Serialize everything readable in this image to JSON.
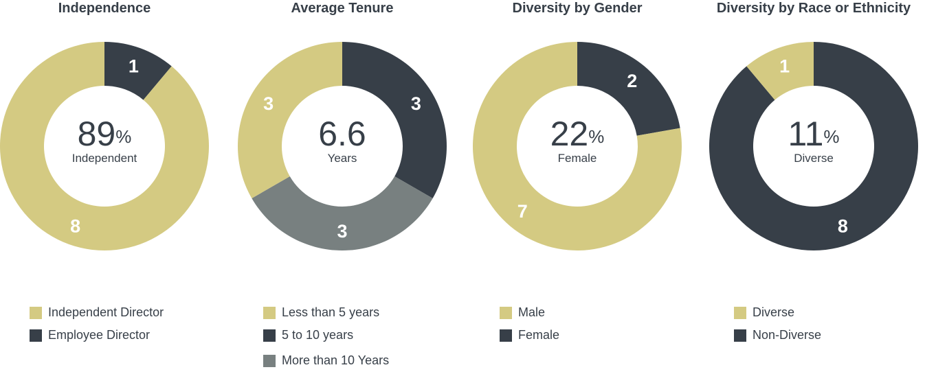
{
  "colors": {
    "gold": "#d4ca82",
    "dark": "#373f48",
    "gray": "#788080"
  },
  "chart_data": [
    {
      "type": "pie",
      "title": "Independence",
      "center_value": "89",
      "center_unit": "%",
      "center_label": "Independent",
      "segments": [
        {
          "label": "Employee Director",
          "value": 1,
          "color": "#373f48"
        },
        {
          "label": "Independent Director",
          "value": 8,
          "color": "#d4ca82"
        }
      ],
      "legend": [
        {
          "label": "Independent Director",
          "color": "#d4ca82"
        },
        {
          "label": "Employee Director",
          "color": "#373f48"
        }
      ]
    },
    {
      "type": "pie",
      "title": "Average Tenure",
      "center_value": "6.6",
      "center_unit": "",
      "center_label": "Years",
      "segments": [
        {
          "label": "5 to 10 years",
          "value": 3,
          "color": "#373f48"
        },
        {
          "label": "More than 10 Years",
          "value": 3,
          "color": "#788080"
        },
        {
          "label": "Less than 5 years",
          "value": 3,
          "color": "#d4ca82"
        }
      ],
      "legend": [
        {
          "label": "Less than 5 years",
          "color": "#d4ca82"
        },
        {
          "label": "5 to 10 years",
          "color": "#373f48"
        },
        {
          "label": "More than 10 Years",
          "color": "#788080"
        }
      ]
    },
    {
      "type": "pie",
      "title": "Diversity by Gender",
      "center_value": "22",
      "center_unit": "%",
      "center_label": "Female",
      "segments": [
        {
          "label": "Female",
          "value": 2,
          "color": "#373f48"
        },
        {
          "label": "Male",
          "value": 7,
          "color": "#d4ca82"
        }
      ],
      "legend": [
        {
          "label": "Male",
          "color": "#d4ca82"
        },
        {
          "label": "Female",
          "color": "#373f48"
        }
      ]
    },
    {
      "type": "pie",
      "title": "Diversity by Race or Ethnicity",
      "center_value": "11",
      "center_unit": "%",
      "center_label": "Diverse",
      "segments": [
        {
          "label": "Non-Diverse",
          "value": 8,
          "color": "#373f48"
        },
        {
          "label": "Diverse",
          "value": 1,
          "color": "#d4ca82"
        }
      ],
      "legend": [
        {
          "label": "Diverse",
          "color": "#d4ca82"
        },
        {
          "label": "Non-Diverse",
          "color": "#373f48"
        }
      ]
    }
  ]
}
